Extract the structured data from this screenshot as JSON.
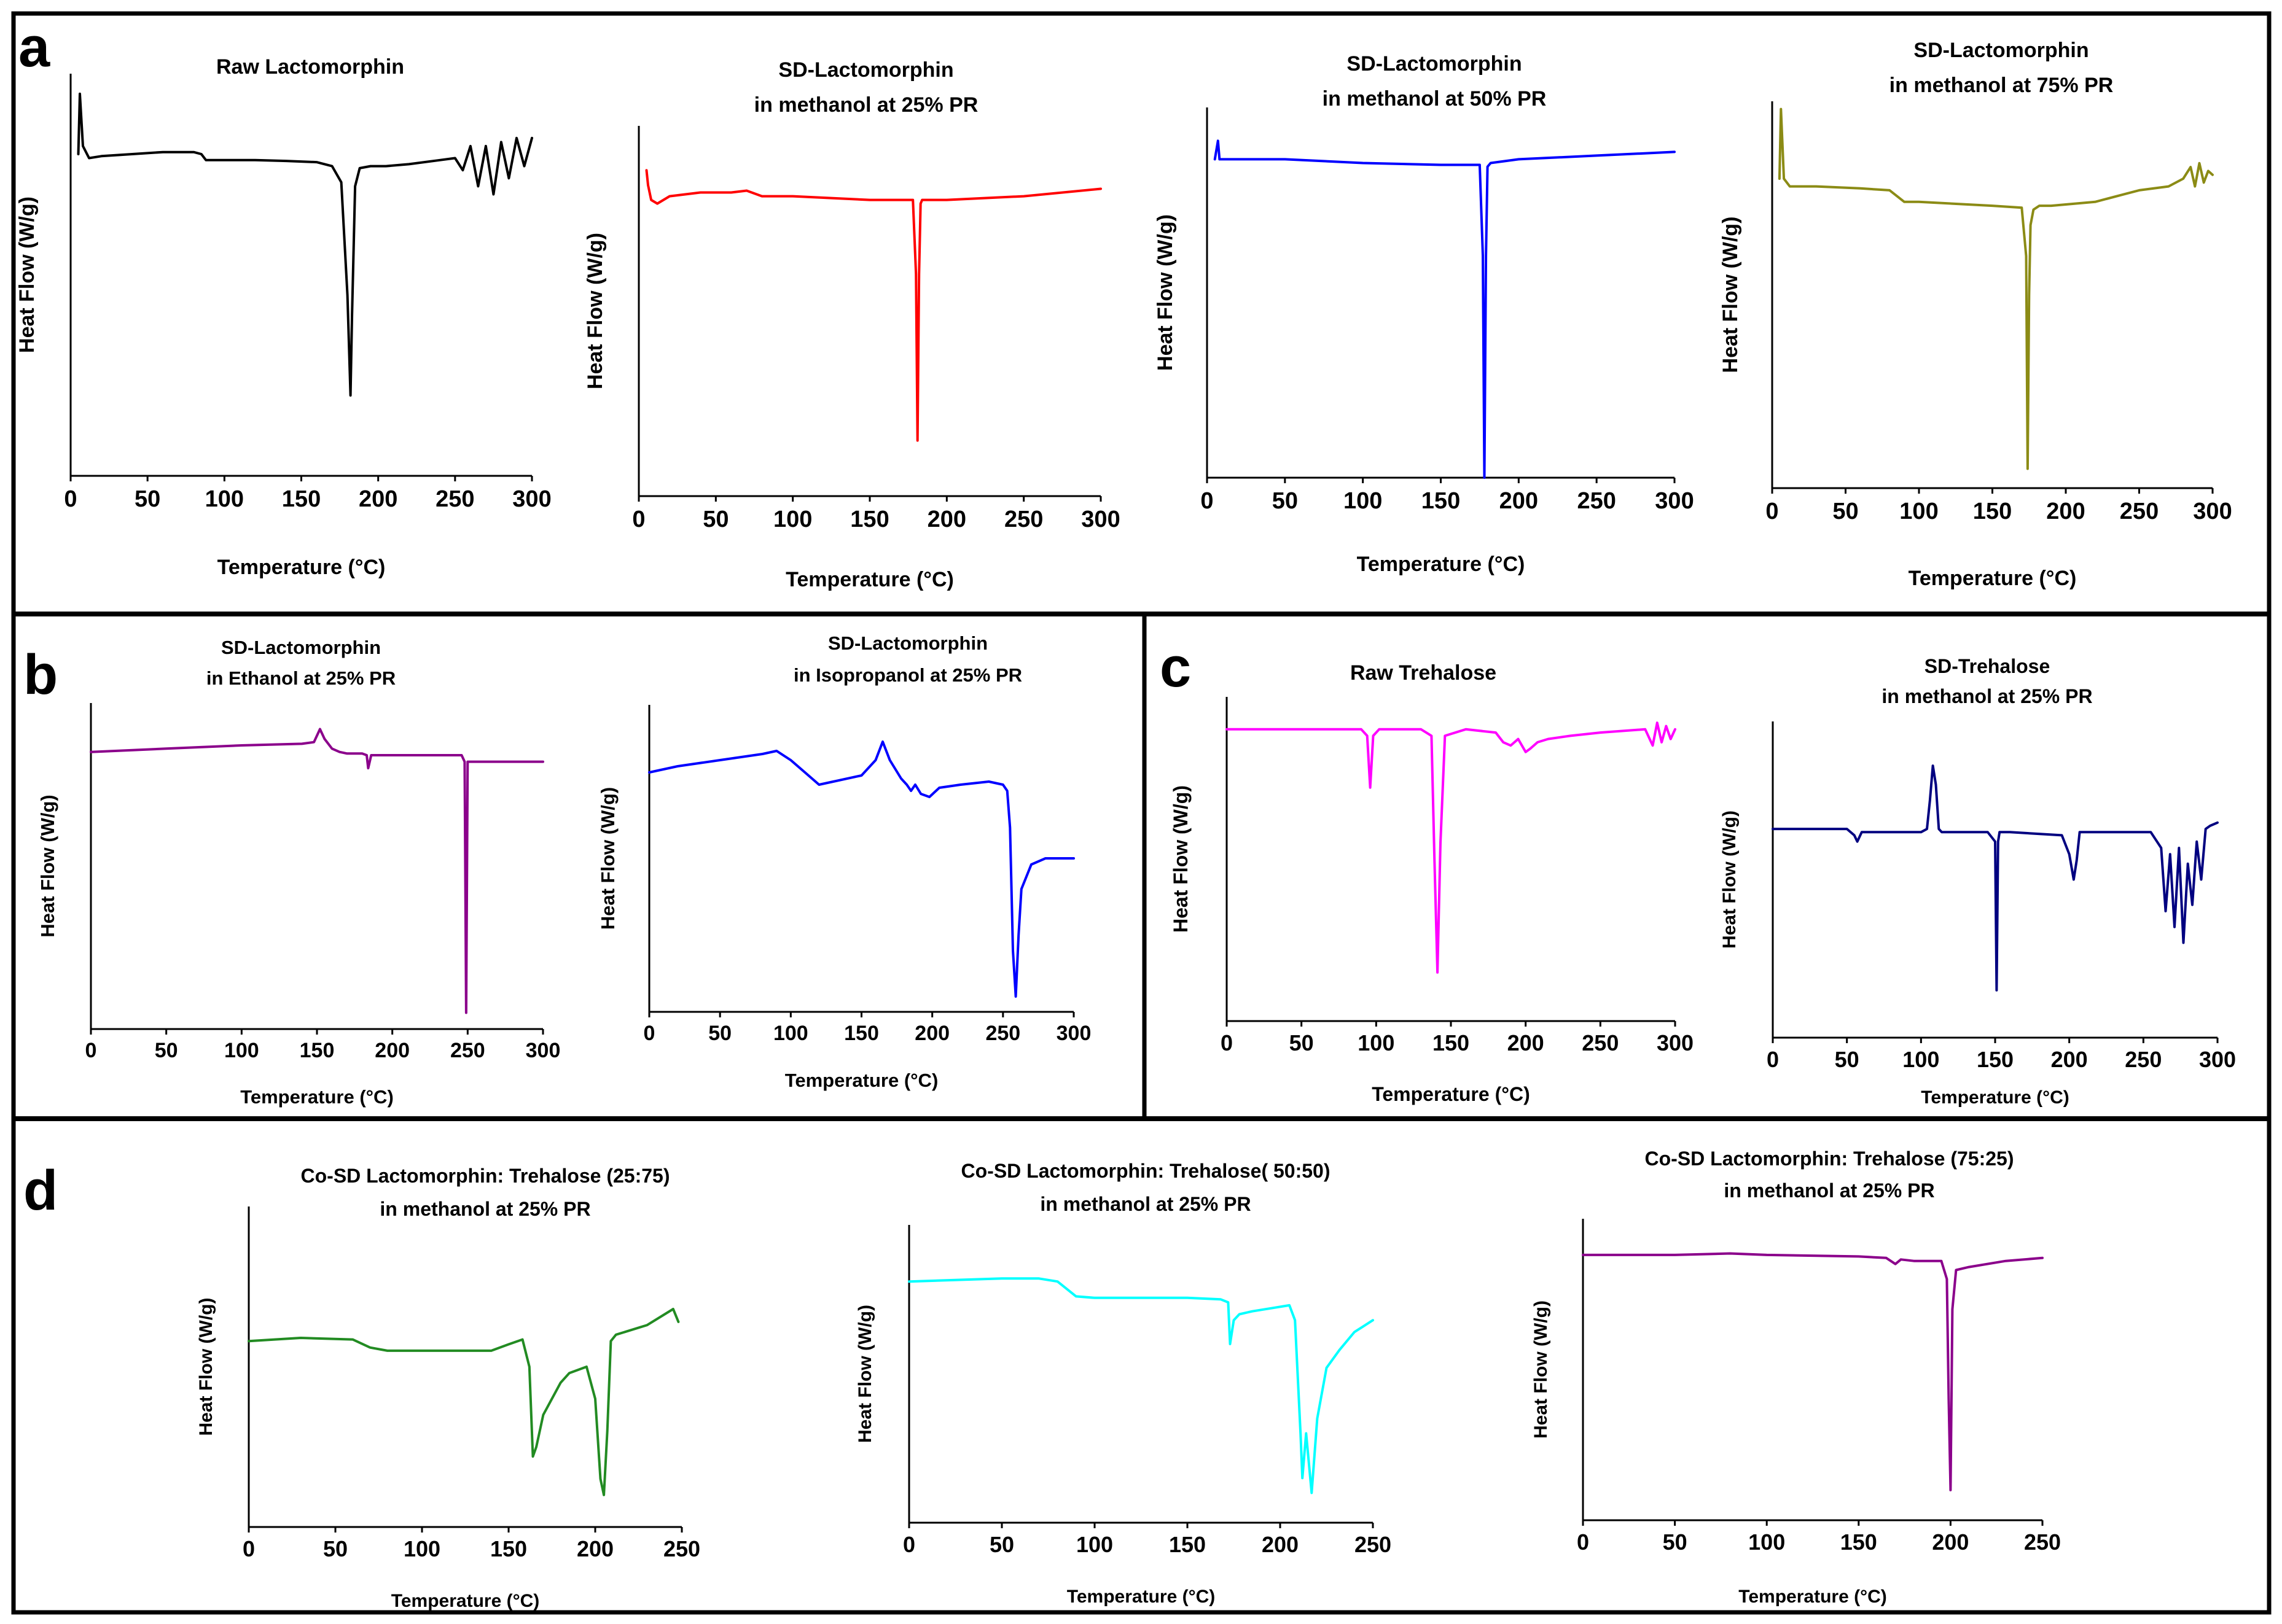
{
  "figure": {
    "panel_labels": [
      "a",
      "b",
      "c",
      "d"
    ]
  },
  "chart_data": [
    {
      "panel": "a",
      "type": "line",
      "title_lines": [
        "Raw Lactomorphin"
      ],
      "xlabel": "Temperature (°C)",
      "ylabel": "Heat Flow (W/g)",
      "xlim": [
        0,
        300
      ],
      "ylim": [
        0,
        100
      ],
      "xticks": [
        0,
        50,
        100,
        150,
        200,
        250,
        300
      ],
      "color": "#000000",
      "series": [
        {
          "name": "Raw Lactomorphin",
          "x": [
            5,
            6,
            8,
            12,
            20,
            40,
            60,
            80,
            85,
            88,
            100,
            120,
            140,
            160,
            170,
            176,
            180,
            182,
            183,
            185,
            188,
            195,
            205,
            220,
            240,
            250,
            255,
            260,
            265,
            270,
            275,
            280,
            285,
            290,
            295,
            300
          ],
          "y": [
            80,
            95,
            82,
            79,
            79.5,
            80,
            80.5,
            80.5,
            80,
            78.5,
            78.5,
            78.5,
            78.3,
            78,
            77,
            73,
            45,
            20,
            40,
            72,
            76.5,
            77,
            77,
            77.5,
            78.5,
            79,
            76,
            82,
            72,
            82,
            70,
            83,
            74,
            84,
            77,
            84
          ]
        }
      ]
    },
    {
      "panel": "a",
      "type": "line",
      "title_lines": [
        "SD-Lactomorphin",
        "in methanol at 25% PR"
      ],
      "xlabel": "Temperature (°C)",
      "ylabel": "Heat Flow (W/g)",
      "xlim": [
        0,
        300
      ],
      "ylim": [
        0,
        100
      ],
      "xticks": [
        0,
        50,
        100,
        150,
        200,
        250,
        300
      ],
      "color": "#ff0000",
      "series": [
        {
          "name": "SD-Lactomorphin 25% PR",
          "x": [
            5,
            6,
            8,
            12,
            20,
            40,
            60,
            70,
            80,
            100,
            150,
            178,
            180,
            181,
            182,
            183,
            184,
            190,
            200,
            250,
            300
          ],
          "y": [
            88,
            84,
            80,
            79,
            81,
            82,
            82,
            82.5,
            81,
            81,
            80,
            80,
            60,
            15,
            60,
            79,
            80,
            80,
            80,
            81,
            83
          ]
        }
      ]
    },
    {
      "panel": "a",
      "type": "line",
      "title_lines": [
        "SD-Lactomorphin",
        "in methanol at 50% PR"
      ],
      "xlabel": "Temperature (°C)",
      "ylabel": "Heat Flow (W/g)",
      "xlim": [
        0,
        300
      ],
      "ylim": [
        0,
        100
      ],
      "xticks": [
        0,
        50,
        100,
        150,
        200,
        250,
        300
      ],
      "color": "#0000ff",
      "series": [
        {
          "name": "SD-Lactomorphin 50% PR",
          "x": [
            5,
            7,
            8,
            10,
            20,
            50,
            100,
            150,
            175,
            177,
            178,
            179,
            180,
            182,
            200,
            250,
            300
          ],
          "y": [
            86,
            91,
            86,
            86,
            86,
            86,
            85,
            84.5,
            84.5,
            60,
            0,
            60,
            84,
            85,
            86,
            87,
            88
          ]
        }
      ]
    },
    {
      "panel": "a",
      "type": "line",
      "title_lines": [
        "SD-Lactomorphin",
        "in methanol at 75% PR"
      ],
      "xlabel": "Temperature (°C)",
      "ylabel": "Heat Flow (W/g)",
      "xlim": [
        0,
        300
      ],
      "ylim": [
        0,
        100
      ],
      "xticks": [
        0,
        50,
        100,
        150,
        200,
        250,
        300
      ],
      "color": "#8b8b15",
      "series": [
        {
          "name": "SD-Lactomorphin 75% PR",
          "x": [
            5,
            6,
            8,
            12,
            30,
            60,
            80,
            90,
            100,
            150,
            170,
            173,
            174,
            175,
            176,
            178,
            182,
            190,
            220,
            240,
            250,
            270,
            280,
            285,
            288,
            291,
            294,
            297,
            300
          ],
          "y": [
            80,
            98,
            80,
            78,
            78,
            77.5,
            77,
            74,
            74,
            73,
            72.5,
            60,
            5,
            50,
            68,
            72,
            73,
            73,
            74,
            76,
            77,
            78,
            80,
            83,
            78,
            84,
            79,
            82,
            81
          ]
        }
      ]
    },
    {
      "panel": "b",
      "type": "line",
      "title_lines": [
        "SD-Lactomorphin",
        "in Ethanol at 25% PR"
      ],
      "xlabel": "Temperature (°C)",
      "ylabel": "Heat Flow (W/g)",
      "xlim": [
        0,
        300
      ],
      "ylim": [
        0,
        100
      ],
      "xticks": [
        0,
        50,
        100,
        150,
        200,
        250,
        300
      ],
      "color": "#8b008b",
      "series": [
        {
          "name": "SD-Lactomorphin Ethanol 25% PR",
          "x": [
            0,
            50,
            100,
            140,
            148,
            152,
            155,
            160,
            165,
            170,
            180,
            183,
            184,
            186,
            190,
            200,
            240,
            246,
            248,
            249,
            250,
            252,
            260,
            300
          ],
          "y": [
            85,
            86,
            87,
            87.5,
            88,
            92,
            89,
            86,
            85,
            84.5,
            84.5,
            84,
            80,
            84,
            84,
            84,
            84,
            84,
            82,
            5,
            82,
            82,
            82,
            82
          ]
        }
      ]
    },
    {
      "panel": "b",
      "type": "line",
      "title_lines": [
        "SD-Lactomorphin",
        "in Isopropanol at 25% PR"
      ],
      "xlabel": "Temperature (°C)",
      "ylabel": "Heat Flow (W/g)",
      "xlim": [
        0,
        300
      ],
      "ylim": [
        0,
        100
      ],
      "xticks": [
        0,
        50,
        100,
        150,
        200,
        250,
        300
      ],
      "color": "#0000ff",
      "series": [
        {
          "name": "SD-Lactomorphin Isopropanol 25% PR",
          "x": [
            0,
            20,
            50,
            80,
            90,
            100,
            110,
            120,
            130,
            150,
            160,
            165,
            170,
            178,
            182,
            185,
            188,
            192,
            198,
            205,
            220,
            240,
            250,
            253,
            255,
            257,
            259,
            261,
            263,
            270,
            280,
            290,
            300
          ],
          "y": [
            78,
            80,
            82,
            84,
            85,
            82,
            78,
            74,
            75,
            77,
            82,
            88,
            82,
            76,
            74,
            72,
            74,
            71,
            70,
            73,
            74,
            75,
            74,
            72,
            60,
            20,
            5,
            25,
            40,
            48,
            50,
            50,
            50
          ]
        }
      ]
    },
    {
      "panel": "c",
      "type": "line",
      "title_lines": [
        "Raw Trehalose"
      ],
      "xlabel": "Temperature (°C)",
      "ylabel": "Heat Flow (W/g)",
      "xlim": [
        0,
        300
      ],
      "ylim": [
        0,
        100
      ],
      "xticks": [
        0,
        50,
        100,
        150,
        200,
        250,
        300
      ],
      "color": "#ff00ff",
      "series": [
        {
          "name": "Raw Trehalose",
          "x": [
            0,
            50,
            90,
            94,
            96,
            98,
            102,
            130,
            137,
            139,
            141,
            143,
            146,
            160,
            180,
            185,
            190,
            195,
            200,
            203,
            208,
            215,
            230,
            250,
            280,
            285,
            288,
            291,
            294,
            297,
            300
          ],
          "y": [
            90,
            90,
            90,
            88,
            72,
            88,
            90,
            90,
            88,
            50,
            15,
            55,
            88,
            90,
            89,
            86,
            85,
            87,
            83,
            84,
            86,
            87,
            88,
            89,
            90,
            85,
            92,
            86,
            91,
            87,
            90
          ]
        }
      ]
    },
    {
      "panel": "c",
      "type": "line",
      "title_lines": [
        "SD-Trehalose",
        "in methanol at 25% PR"
      ],
      "xlabel": "Temperature (°C)",
      "ylabel": "Heat Flow (W/g)",
      "xlim": [
        0,
        300
      ],
      "ylim": [
        0,
        100
      ],
      "xticks": [
        0,
        50,
        100,
        150,
        200,
        250,
        300
      ],
      "color": "#000080",
      "series": [
        {
          "name": "SD-Trehalose",
          "x": [
            0,
            50,
            55,
            57,
            60,
            100,
            104,
            106,
            108,
            110,
            112,
            114,
            120,
            145,
            150,
            151,
            152,
            153,
            155,
            160,
            195,
            200,
            203,
            205,
            207,
            210,
            240,
            255,
            262,
            265,
            268,
            271,
            274,
            277,
            280,
            283,
            286,
            289,
            292,
            295,
            300
          ],
          "y": [
            66,
            66,
            64,
            62,
            65,
            65,
            66,
            75,
            86,
            80,
            66,
            65,
            65,
            65,
            62,
            15,
            62,
            65,
            65,
            65,
            64,
            58,
            50,
            56,
            65,
            65,
            65,
            65,
            60,
            40,
            58,
            35,
            60,
            30,
            55,
            42,
            62,
            50,
            66,
            67,
            68
          ]
        }
      ]
    },
    {
      "panel": "d",
      "type": "line",
      "title_lines": [
        "Co-SD Lactomorphin: Trehalose (25:75)",
        "in methanol at 25% PR"
      ],
      "xlabel": "Temperature (°C)",
      "ylabel": "Heat Flow (W/g)",
      "xlim": [
        0,
        250
      ],
      "ylim": [
        0,
        100
      ],
      "xticks": [
        0,
        50,
        100,
        150,
        200,
        250
      ],
      "color": "#228b22",
      "series": [
        {
          "name": "Co-SD 25:75",
          "x": [
            0,
            30,
            60,
            70,
            80,
            100,
            140,
            150,
            158,
            162,
            164,
            166,
            170,
            180,
            185,
            195,
            200,
            203,
            205,
            207,
            209,
            212,
            230,
            245,
            248
          ],
          "y": [
            58,
            59,
            58.5,
            56,
            55,
            55,
            55,
            57,
            58.5,
            50,
            22,
            25,
            35,
            45,
            48,
            50,
            40,
            15,
            10,
            30,
            58,
            60,
            63,
            68,
            64
          ]
        }
      ]
    },
    {
      "panel": "d",
      "type": "line",
      "title_lines": [
        "Co-SD Lactomorphin: Trehalose( 50:50)",
        "in methanol at 25% PR"
      ],
      "xlabel": "Temperature (°C)",
      "ylabel": "Heat Flow (W/g)",
      "xlim": [
        0,
        250
      ],
      "ylim": [
        0,
        100
      ],
      "xticks": [
        0,
        50,
        100,
        150,
        200,
        250
      ],
      "color": "#00ffff",
      "series": [
        {
          "name": "Co-SD 50:50",
          "x": [
            0,
            50,
            70,
            80,
            90,
            100,
            150,
            168,
            172,
            173,
            175,
            178,
            185,
            195,
            205,
            208,
            211,
            212,
            214,
            217,
            220,
            225,
            232,
            240,
            245,
            250
          ],
          "y": [
            81,
            82,
            82,
            81,
            76,
            75.5,
            75.5,
            75,
            74,
            60,
            68,
            70,
            71,
            72,
            73,
            68,
            30,
            15,
            30,
            10,
            35,
            52,
            58,
            64,
            66,
            68
          ]
        }
      ]
    },
    {
      "panel": "d",
      "type": "line",
      "title_lines": [
        "Co-SD Lactomorphin: Trehalose (75:25)",
        "in methanol at 25% PR"
      ],
      "xlabel": "Temperature (°C)",
      "ylabel": "Heat Flow (W/g)",
      "xlim": [
        0,
        250
      ],
      "ylim": [
        0,
        100
      ],
      "xticks": [
        0,
        50,
        100,
        150,
        200,
        250
      ],
      "color": "#8b008b",
      "series": [
        {
          "name": "Co-SD 75:25",
          "x": [
            0,
            50,
            80,
            100,
            150,
            165,
            170,
            173,
            180,
            195,
            198,
            199,
            200,
            201,
            203,
            210,
            230,
            250
          ],
          "y": [
            88,
            88,
            88.5,
            88,
            87.5,
            87,
            85,
            86.5,
            86,
            86,
            80,
            40,
            10,
            70,
            83,
            84,
            86,
            87
          ]
        }
      ]
    }
  ]
}
